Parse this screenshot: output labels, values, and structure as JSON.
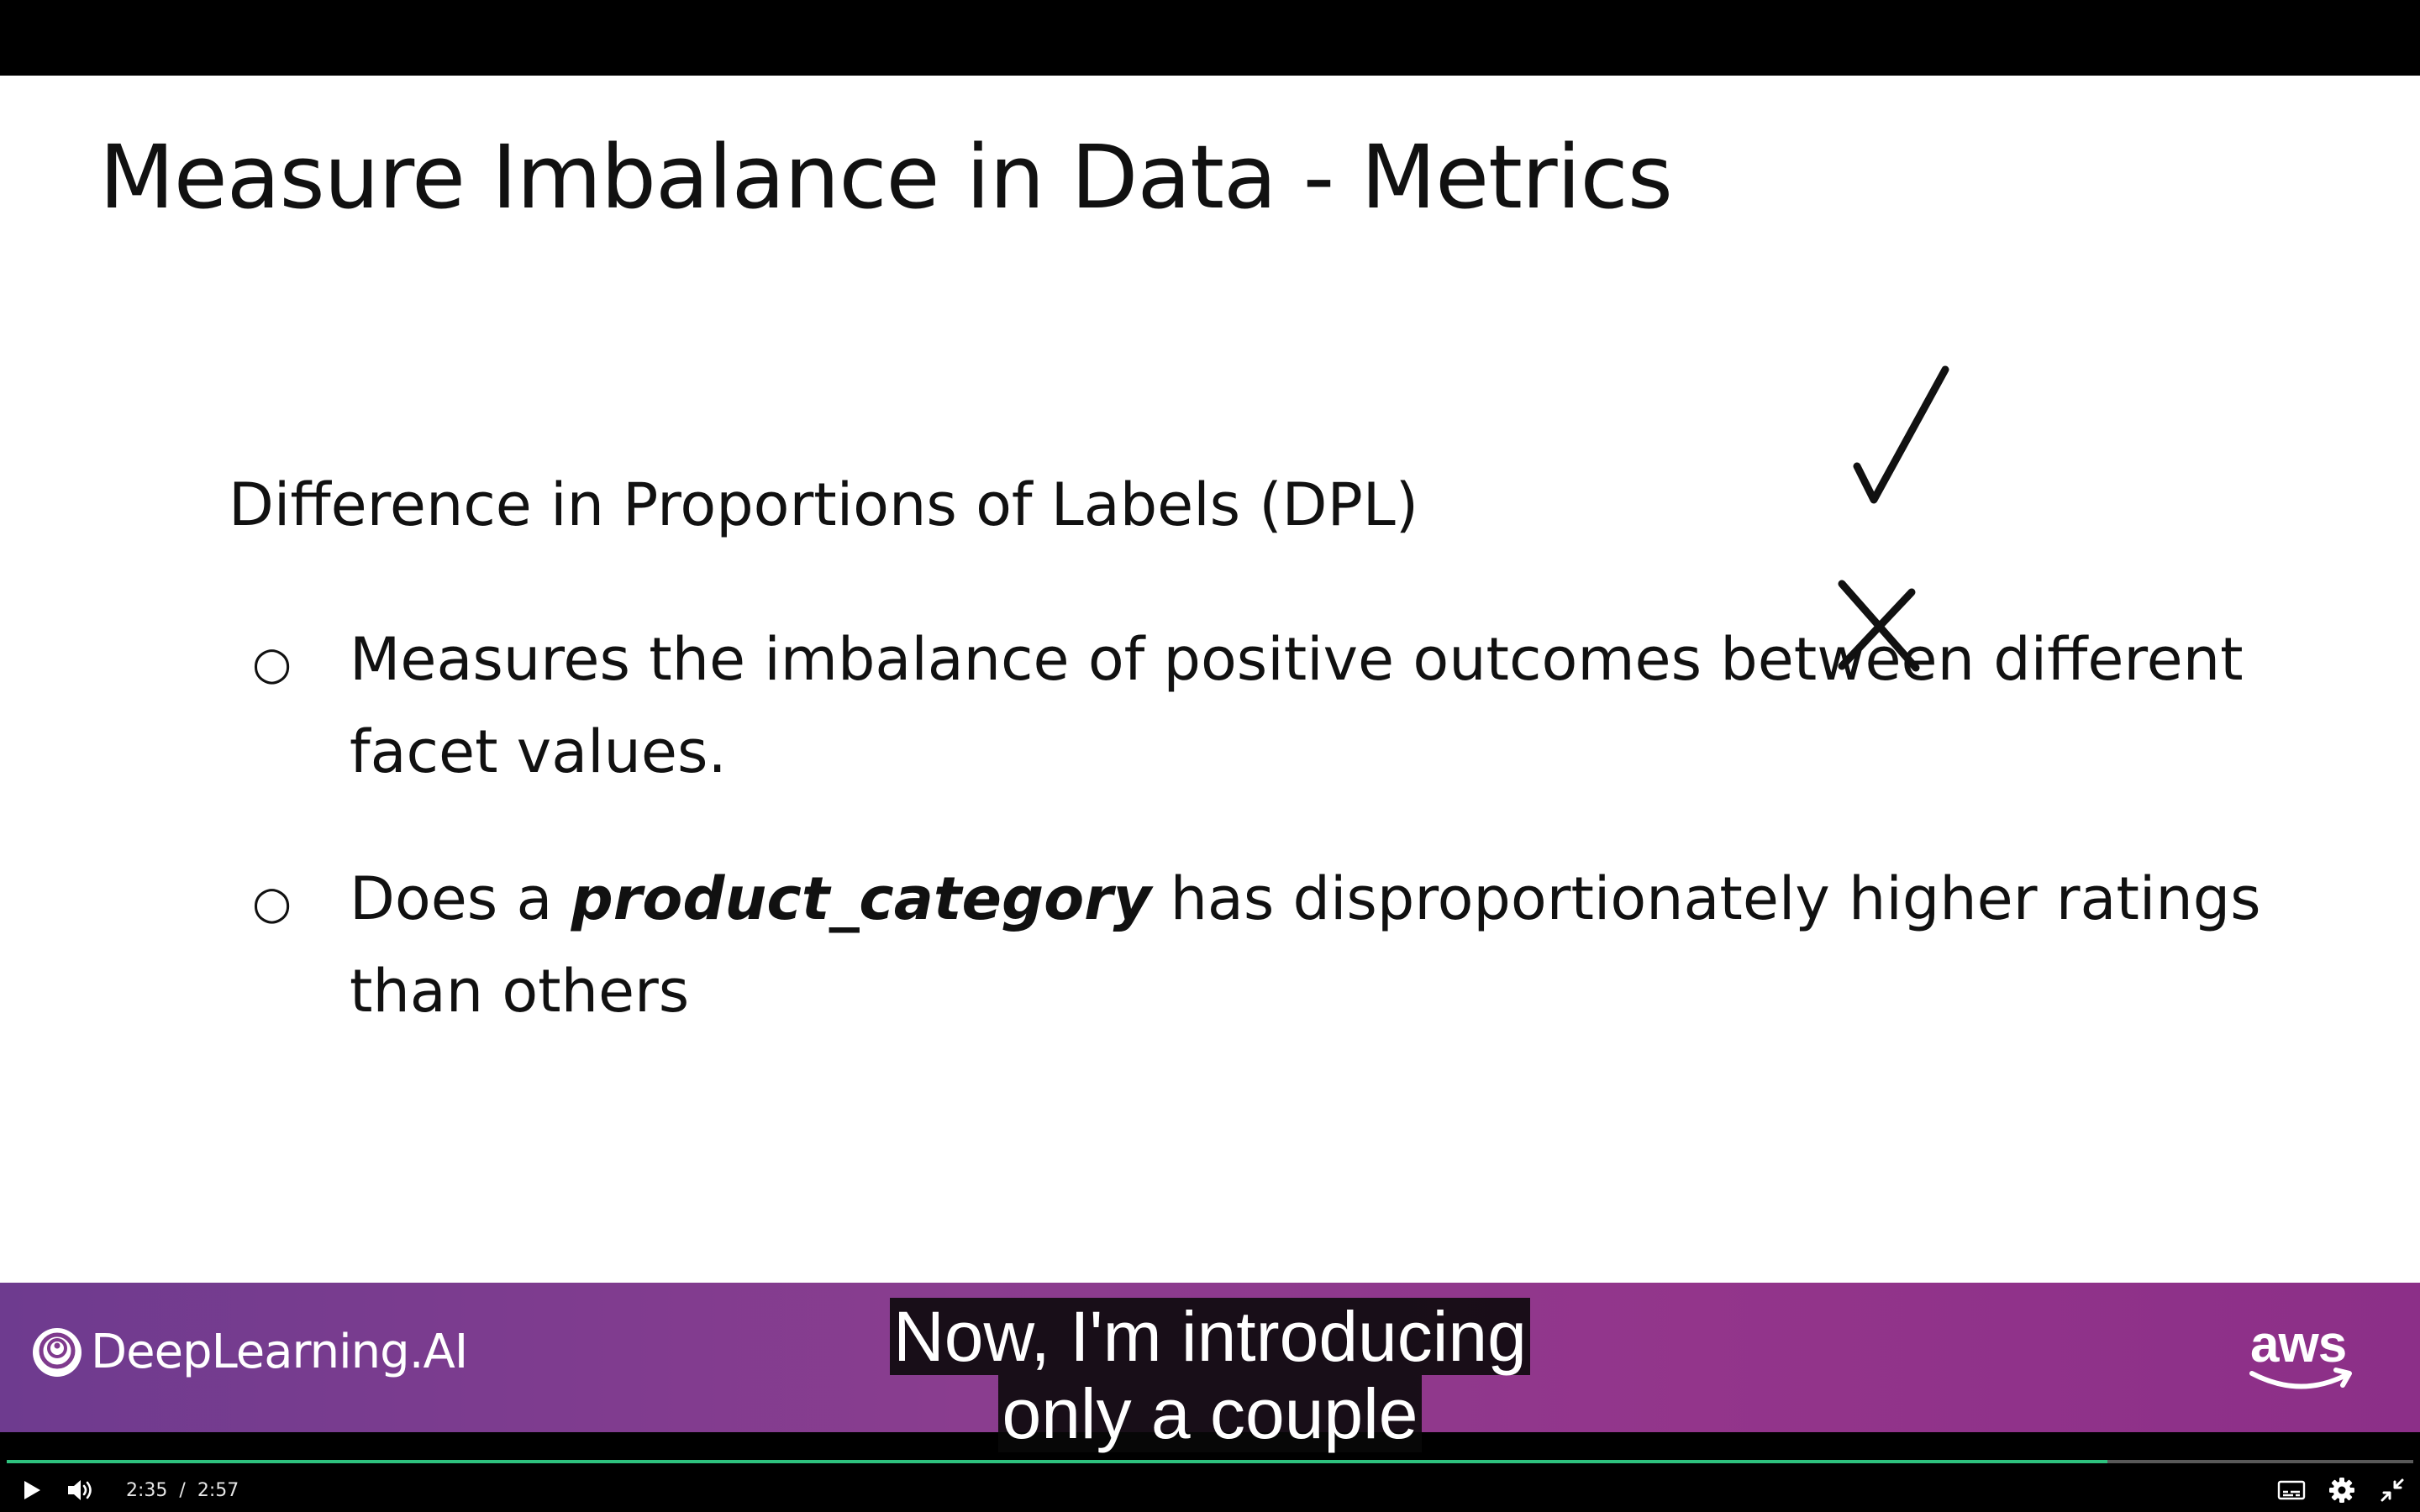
{
  "slide": {
    "title": "Measure Imbalance in Data - Metrics",
    "metric_heading": "Difference in Proportions of Labels (DPL)",
    "bullet_marker": "○",
    "bullets": [
      {
        "text": "Measures the imbalance of positive outcomes between different facet values."
      },
      {
        "prefix": "Does a ",
        "emphasis": "product_category",
        "suffix": " has disproportionately higher ratings than others"
      }
    ],
    "marks": [
      "checkmark-icon",
      "cross-icon"
    ]
  },
  "banner": {
    "left_logo_text": "DeepLearning.AI",
    "right_logo_text": "aws",
    "colors": {
      "gradient_start": "#6e3b8f",
      "gradient_end": "#8c2f88"
    }
  },
  "captions": {
    "line1": "Now, I'm introducing",
    "line2": "only a couple"
  },
  "player": {
    "current_time": "2:35",
    "separator": "/",
    "duration": "2:57",
    "progress_fraction": 0.873,
    "progress_color": "#2ec27e",
    "icons": [
      "play-icon",
      "volume-icon",
      "captions-icon",
      "gear-icon",
      "exit-fullscreen-icon"
    ]
  }
}
